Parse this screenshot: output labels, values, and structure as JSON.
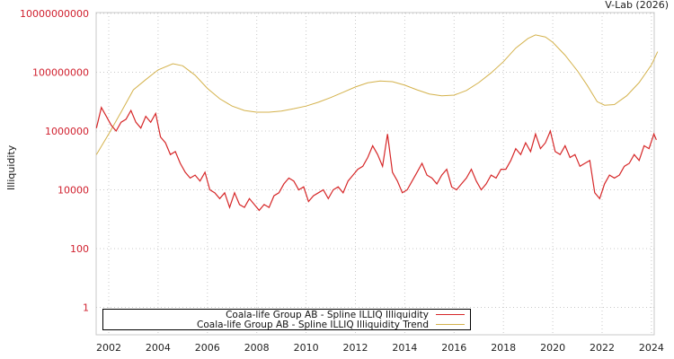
{
  "header": {
    "credit": "V-Lab (2026)"
  },
  "axes": {
    "ylabel": "Illiquidity",
    "yticks": [
      {
        "label": "10000000000",
        "log": 10
      },
      {
        "label": "100000000",
        "log": 8
      },
      {
        "label": "1000000",
        "log": 6
      },
      {
        "label": "10000",
        "log": 4
      },
      {
        "label": "100",
        "log": 2
      },
      {
        "label": "1",
        "log": 0
      }
    ],
    "xticks": [
      "2002",
      "2004",
      "2006",
      "2008",
      "2010",
      "2012",
      "2014",
      "2016",
      "2018",
      "2020",
      "2022",
      "2024"
    ]
  },
  "legend": {
    "items": [
      {
        "label": "Coala-life Group AB - Spline ILLIQ Illiquidity",
        "color": "#d62728"
      },
      {
        "label": "Coala-life Group AB - Spline ILLIQ Illiquidity Trend",
        "color": "#d4b24c"
      }
    ]
  },
  "chart_data": {
    "type": "line",
    "title": "",
    "xlabel": "",
    "ylabel": "Illiquidity",
    "yscale": "log",
    "ylim": [
      0.1,
      10000000000
    ],
    "xlim": [
      2001.5,
      2024.25
    ],
    "grid": true,
    "legend_position": "bottom-left inside",
    "series": [
      {
        "name": "Coala-life Group AB - Spline ILLIQ Illiquidity",
        "color": "#d62728",
        "x": [
          2001.5,
          2001.7,
          2001.9,
          2002.1,
          2002.3,
          2002.5,
          2002.7,
          2002.9,
          2003.1,
          2003.3,
          2003.5,
          2003.7,
          2003.9,
          2004.1,
          2004.3,
          2004.5,
          2004.7,
          2004.9,
          2005.1,
          2005.3,
          2005.5,
          2005.7,
          2005.9,
          2006.1,
          2006.3,
          2006.5,
          2006.7,
          2006.9,
          2007.1,
          2007.3,
          2007.5,
          2007.7,
          2007.9,
          2008.1,
          2008.3,
          2008.5,
          2008.7,
          2008.9,
          2009.1,
          2009.3,
          2009.5,
          2009.7,
          2009.9,
          2010.1,
          2010.3,
          2010.5,
          2010.7,
          2010.9,
          2011.1,
          2011.3,
          2011.5,
          2011.7,
          2011.9,
          2012.1,
          2012.3,
          2012.5,
          2012.7,
          2012.9,
          2013.1,
          2013.3,
          2013.5,
          2013.7,
          2013.9,
          2014.1,
          2014.3,
          2014.5,
          2014.7,
          2014.9,
          2015.1,
          2015.3,
          2015.5,
          2015.7,
          2015.9,
          2016.1,
          2016.3,
          2016.5,
          2016.7,
          2016.9,
          2017.1,
          2017.3,
          2017.5,
          2017.7,
          2017.9,
          2018.1,
          2018.3,
          2018.5,
          2018.7,
          2018.9,
          2019.1,
          2019.3,
          2019.5,
          2019.7,
          2019.9,
          2020.1,
          2020.3,
          2020.5,
          2020.7,
          2020.9,
          2021.1,
          2021.3,
          2021.5,
          2021.7,
          2021.9,
          2022.1,
          2022.3,
          2022.5,
          2022.7,
          2022.9,
          2023.1,
          2023.3,
          2023.5,
          2023.7,
          2023.9,
          2024.1,
          2024.2
        ],
        "log10_values": [
          6.1,
          6.8,
          6.5,
          6.2,
          6.0,
          6.3,
          6.4,
          6.7,
          6.3,
          6.1,
          6.5,
          6.3,
          6.6,
          5.8,
          5.6,
          5.2,
          5.3,
          4.9,
          4.6,
          4.4,
          4.5,
          4.3,
          4.6,
          4.0,
          3.9,
          3.7,
          3.9,
          3.4,
          3.9,
          3.5,
          3.4,
          3.7,
          3.5,
          3.3,
          3.5,
          3.4,
          3.8,
          3.9,
          4.2,
          4.4,
          4.3,
          4.0,
          4.1,
          3.6,
          3.8,
          3.9,
          4.0,
          3.7,
          4.0,
          4.1,
          3.9,
          4.3,
          4.5,
          4.7,
          4.8,
          5.1,
          5.5,
          5.2,
          4.8,
          5.9,
          4.6,
          4.3,
          3.9,
          4.0,
          4.3,
          4.6,
          4.9,
          4.5,
          4.4,
          4.2,
          4.5,
          4.7,
          4.1,
          4.0,
          4.2,
          4.4,
          4.7,
          4.3,
          4.0,
          4.2,
          4.5,
          4.4,
          4.7,
          4.7,
          5.0,
          5.4,
          5.2,
          5.6,
          5.3,
          5.9,
          5.4,
          5.6,
          6.0,
          5.3,
          5.2,
          5.5,
          5.1,
          5.2,
          4.8,
          4.9,
          5.0,
          3.9,
          3.7,
          4.2,
          4.5,
          4.4,
          4.5,
          4.8,
          4.9,
          5.2,
          5.0,
          5.5,
          5.4,
          5.9,
          5.7
        ]
      },
      {
        "name": "Coala-life Group AB - Spline ILLIQ Illiquidity Trend",
        "color": "#d4b24c",
        "x": [
          2001.5,
          2002.0,
          2002.5,
          2003.0,
          2003.5,
          2004.0,
          2004.6,
          2005.0,
          2005.5,
          2006.0,
          2006.5,
          2007.0,
          2007.5,
          2008.0,
          2008.5,
          2009.0,
          2009.5,
          2010.0,
          2010.5,
          2011.0,
          2011.5,
          2012.0,
          2012.5,
          2013.0,
          2013.5,
          2014.0,
          2014.5,
          2015.0,
          2015.5,
          2016.0,
          2016.5,
          2017.0,
          2017.5,
          2018.0,
          2018.5,
          2019.0,
          2019.3,
          2019.7,
          2020.0,
          2020.5,
          2021.0,
          2021.4,
          2021.8,
          2022.1,
          2022.5,
          2023.0,
          2023.5,
          2024.0,
          2024.25
        ],
        "log10_values": [
          5.2,
          5.9,
          6.64,
          7.4,
          7.75,
          8.08,
          8.29,
          8.22,
          7.9,
          7.45,
          7.1,
          6.85,
          6.7,
          6.64,
          6.64,
          6.68,
          6.76,
          6.85,
          6.98,
          7.14,
          7.32,
          7.5,
          7.64,
          7.7,
          7.68,
          7.56,
          7.4,
          7.26,
          7.2,
          7.22,
          7.38,
          7.65,
          7.98,
          8.36,
          8.82,
          9.15,
          9.27,
          9.2,
          9.02,
          8.58,
          8.05,
          7.55,
          7.0,
          6.88,
          6.9,
          7.2,
          7.65,
          8.25,
          8.7
        ]
      }
    ]
  }
}
